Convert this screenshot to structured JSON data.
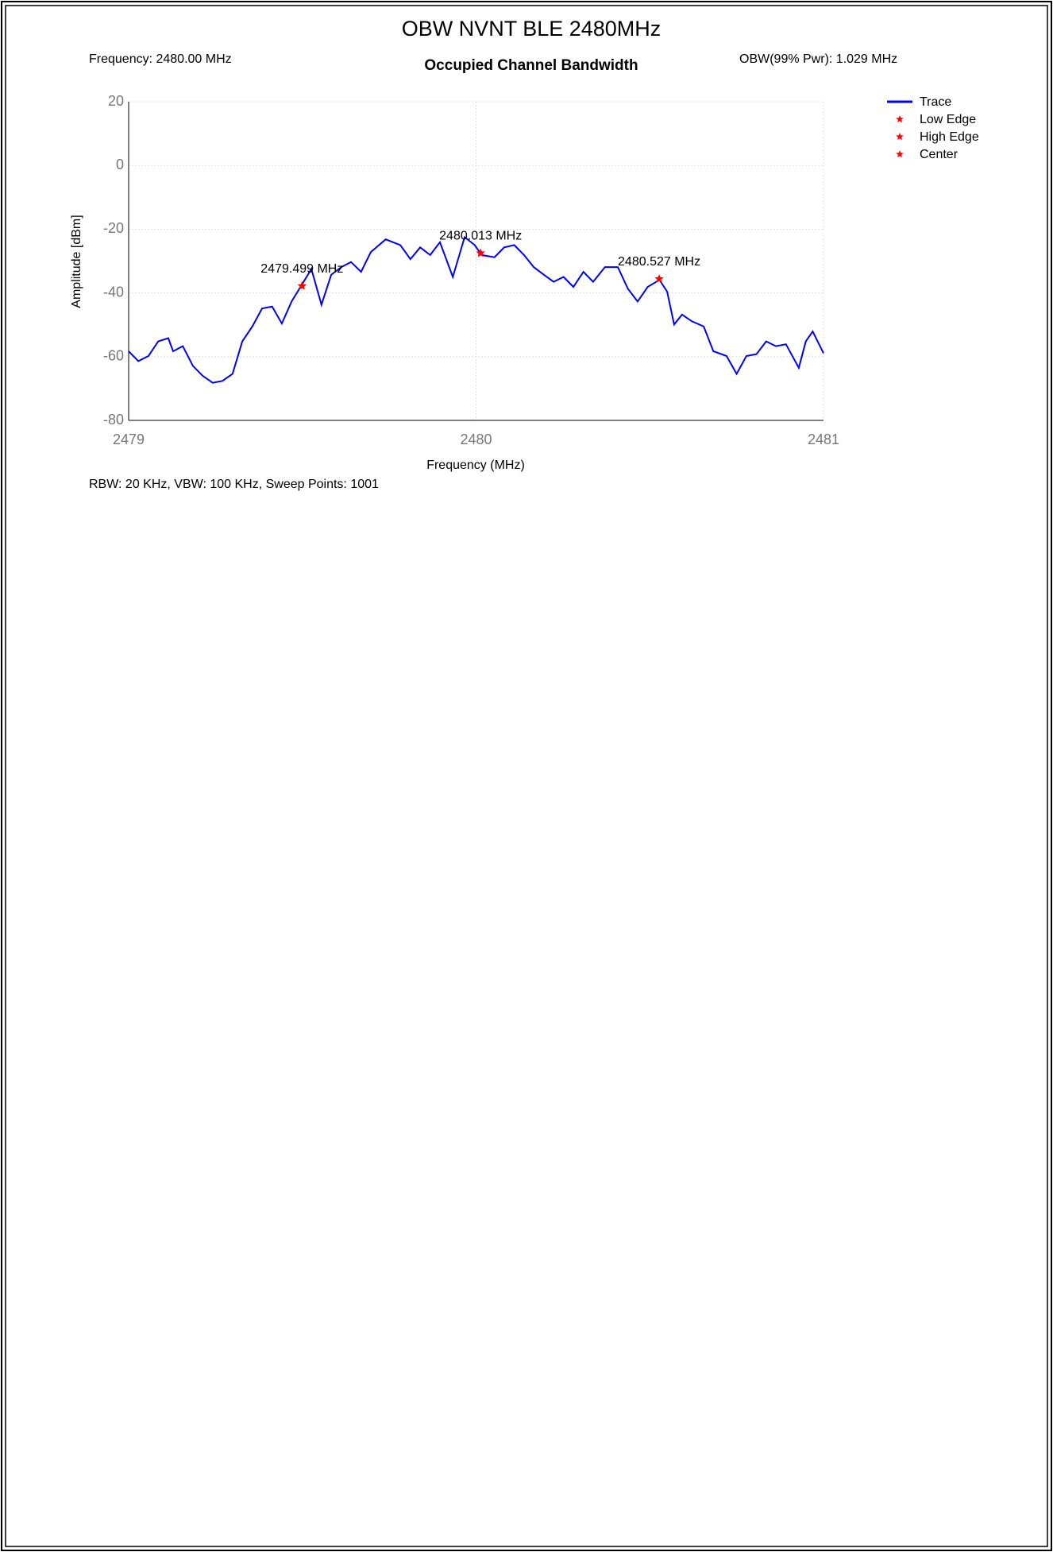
{
  "title": "OBW NVNT BLE 2480MHz",
  "chart_data": {
    "type": "line",
    "title": "Occupied Channel Bandwidth",
    "info_left": "Frequency: 2480.00 MHz",
    "info_right": "OBW(99% Pwr): 1.029 MHz",
    "footer": "RBW: 20 KHz,  VBW: 100 KHz,  Sweep Points: 1001",
    "x_label": "Frequency (MHz)",
    "y_label": "Amplitude [dBm]",
    "xlim": [
      2479,
      2481
    ],
    "xticks": [
      2479,
      2480,
      2481
    ],
    "ylim": [
      -80,
      20
    ],
    "yticks": [
      -80,
      -60,
      -40,
      -20,
      0,
      20
    ],
    "grid": true,
    "legend": "right",
    "series": [
      {
        "name": "Trace",
        "color": "#0000ff",
        "x": [
          2479.0,
          2479.028,
          2479.057,
          2479.085,
          2479.114,
          2479.128,
          2479.156,
          2479.185,
          2479.213,
          2479.242,
          2479.27,
          2479.299,
          2479.327,
          2479.356,
          2479.384,
          2479.413,
          2479.441,
          2479.469,
          2479.498,
          2479.526,
          2479.555,
          2479.583,
          2479.612,
          2479.64,
          2479.669,
          2479.697,
          2479.74,
          2479.782,
          2479.811,
          2479.839,
          2479.868,
          2479.896,
          2479.933,
          2479.967,
          2479.996,
          2480.016,
          2480.053,
          2480.081,
          2480.11,
          2480.138,
          2480.166,
          2480.195,
          2480.223,
          2480.252,
          2480.28,
          2480.309,
          2480.337,
          2480.371,
          2480.408,
          2480.437,
          2480.465,
          2480.494,
          2480.528,
          2480.55,
          2480.57,
          2480.593,
          2480.621,
          2480.655,
          2480.683,
          2480.721,
          2480.75,
          2480.778,
          2480.807,
          2480.835,
          2480.863,
          2480.892,
          2480.929,
          2480.949,
          2480.969,
          2481.0
        ],
        "values": [
          -58.3,
          -61.4,
          -59.8,
          -55.2,
          -54.2,
          -58.3,
          -56.7,
          -62.9,
          -66.0,
          -68.2,
          -67.6,
          -65.4,
          -55.2,
          -50.5,
          -44.9,
          -44.3,
          -49.6,
          -42.7,
          -37.5,
          -32.5,
          -43.7,
          -34.3,
          -31.9,
          -30.3,
          -33.4,
          -27.2,
          -23.2,
          -25.0,
          -29.4,
          -25.7,
          -28.1,
          -24.1,
          -35.0,
          -22.5,
          -25.0,
          -28.1,
          -28.8,
          -25.7,
          -25.0,
          -28.1,
          -31.9,
          -34.3,
          -36.5,
          -35.0,
          -38.1,
          -33.4,
          -36.5,
          -31.9,
          -31.9,
          -38.7,
          -42.7,
          -38.1,
          -35.9,
          -39.6,
          -49.9,
          -46.8,
          -48.9,
          -50.5,
          -58.3,
          -59.8,
          -65.4,
          -59.8,
          -59.2,
          -55.2,
          -56.7,
          -56.1,
          -63.5,
          -55.2,
          -52.1,
          -58.9
        ]
      },
      {
        "name": "Low Edge",
        "color": "#ff0000",
        "marker": "star",
        "x": [
          2479.499
        ],
        "values": [
          -37.8
        ],
        "point_labels": [
          "2479.499 MHz"
        ]
      },
      {
        "name": "High Edge",
        "color": "#ff0000",
        "marker": "star",
        "x": [
          2480.527
        ],
        "values": [
          -35.6
        ],
        "point_labels": [
          "2480.527 MHz"
        ]
      },
      {
        "name": "Center",
        "color": "#ff0000",
        "marker": "star",
        "x": [
          2480.013
        ],
        "values": [
          -27.5
        ],
        "point_labels": [
          "2480.013 MHz"
        ]
      }
    ]
  }
}
